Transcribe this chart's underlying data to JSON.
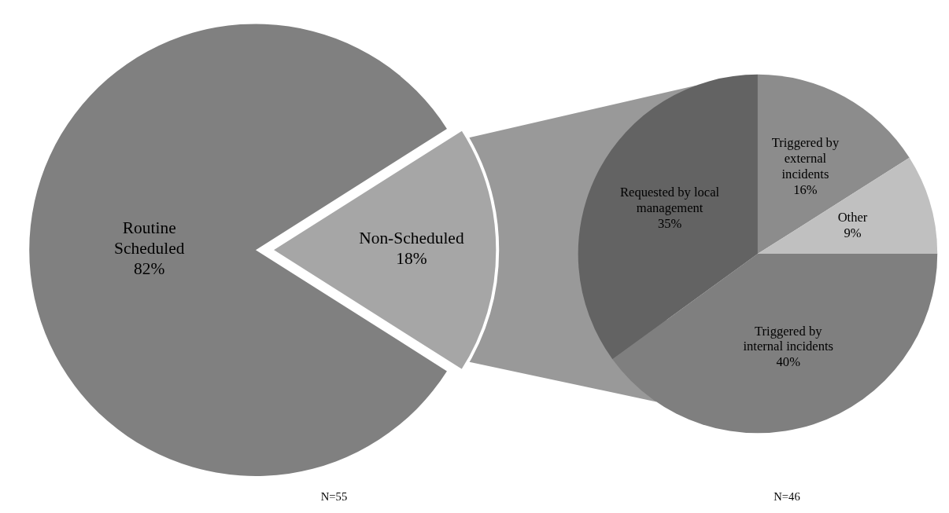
{
  "chart_data": [
    {
      "type": "pie",
      "categories": [
        "Routine Scheduled",
        "Non-Scheduled"
      ],
      "values": [
        82,
        18
      ],
      "colors": [
        "#808080",
        "#a6a6a6"
      ],
      "value_labels": [
        "82%",
        "18%"
      ],
      "annotations": [
        "N=55"
      ]
    },
    {
      "type": "pie",
      "categories": [
        "Triggered by external incidents",
        "Other",
        "Triggered by internal incidents",
        "Requested by local management"
      ],
      "values": [
        16,
        9,
        40,
        35
      ],
      "colors": [
        "#8c8c8c",
        "#c0c0c0",
        "#7f7f7f",
        "#636363"
      ],
      "value_labels": [
        "16%",
        "9%",
        "40%",
        "35%"
      ],
      "annotations": [
        "N=46"
      ]
    }
  ]
}
